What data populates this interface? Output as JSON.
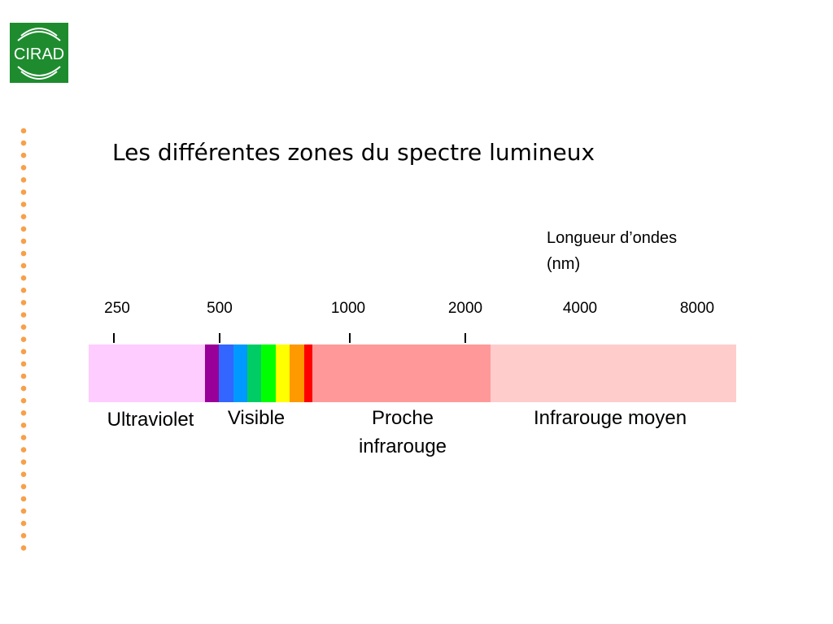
{
  "logo": {
    "text": "CIRAD"
  },
  "title": "Les différentes zones du spectre lumineux",
  "axis_label": [
    "Longueur d’ondes",
    "(nm)"
  ],
  "ticks": [
    "250",
    "500",
    "1000",
    "2000",
    "4000",
    "8000"
  ],
  "zones": [
    {
      "label": [
        "Ultraviolet"
      ]
    },
    {
      "label": [
        "Visible"
      ]
    },
    {
      "label": [
        "Proche",
        "infrarouge"
      ]
    },
    {
      "label": [
        "Infrarouge moyen"
      ]
    }
  ]
}
